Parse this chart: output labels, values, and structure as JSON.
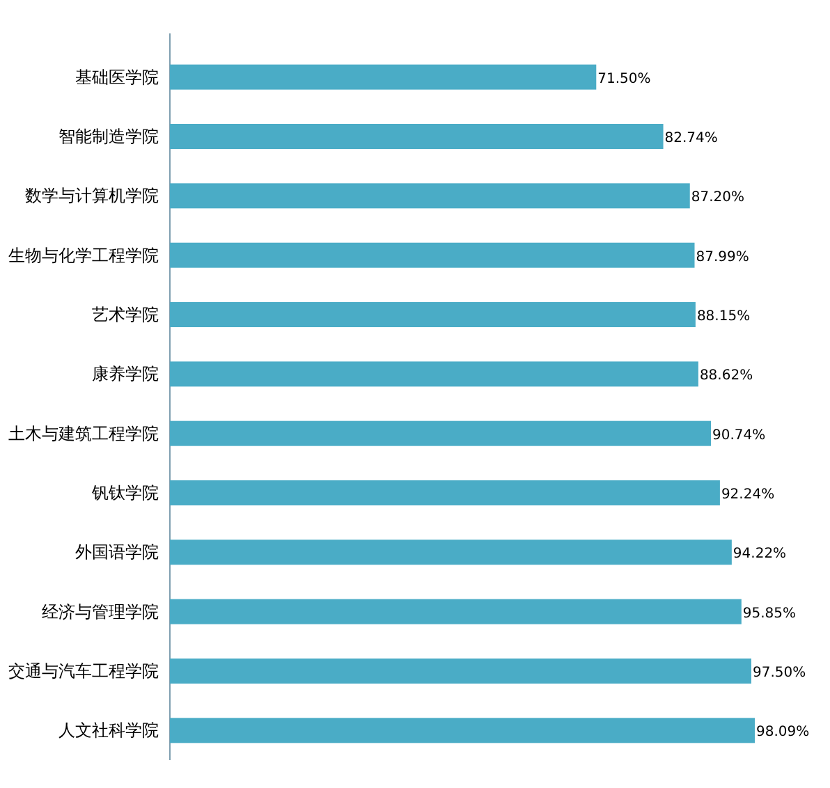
{
  "chart_data": {
    "type": "bar",
    "orientation": "horizontal",
    "color": "#4aacc6",
    "categories": [
      "基础医学院",
      "智能制造学院",
      "数学与计算机学院",
      "生物与化学工程学院",
      "艺术学院",
      "康养学院",
      "土木与建筑工程学院",
      "钒钛学院",
      "外国语学院",
      "经济与管理学院",
      "交通与汽车工程学院",
      "人文社科学院"
    ],
    "values": [
      71.5,
      82.74,
      87.2,
      87.99,
      88.15,
      88.62,
      90.74,
      92.24,
      94.22,
      95.85,
      97.5,
      98.09
    ],
    "value_labels": [
      "71.50%",
      "82.74%",
      "87.20%",
      "87.99%",
      "88.15%",
      "88.62%",
      "90.74%",
      "92.24%",
      "94.22%",
      "95.85%",
      "97.50%",
      "98.09%"
    ]
  }
}
